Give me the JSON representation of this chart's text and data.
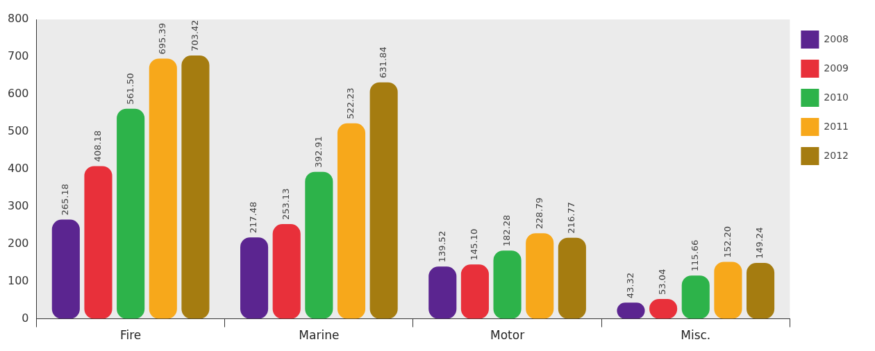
{
  "chart_data": {
    "type": "bar",
    "categories": [
      "Fire",
      "Marine",
      "Motor",
      "Misc."
    ],
    "series": [
      {
        "name": "2008",
        "color": "#5b2590",
        "values": [
          265.18,
          217.48,
          139.52,
          43.32
        ],
        "value_labels": [
          "265.18",
          "217.48",
          "139.52",
          "43.32"
        ]
      },
      {
        "name": "2009",
        "color": "#e8303a",
        "values": [
          408.18,
          253.13,
          145.1,
          53.04
        ],
        "value_labels": [
          "408.18",
          "253.13",
          "145.10",
          "53.04"
        ]
      },
      {
        "name": "2010",
        "color": "#2db34a",
        "values": [
          561.5,
          392.91,
          182.28,
          115.66
        ],
        "value_labels": [
          "561.50",
          "392.91",
          "182.28",
          "115.66"
        ]
      },
      {
        "name": "2011",
        "color": "#f7a81b",
        "values": [
          695.39,
          522.23,
          228.79,
          152.2
        ],
        "value_labels": [
          "695.39",
          "522.23",
          "228.79",
          "152.20"
        ]
      },
      {
        "name": "2012",
        "color": "#a57c10",
        "values": [
          703.42,
          631.84,
          216.77,
          149.24
        ],
        "value_labels": [
          "703.42",
          "631.84",
          "216.77",
          "149.24"
        ]
      }
    ],
    "ylim": [
      0,
      800
    ],
    "yticks": [
      0,
      100,
      200,
      300,
      400,
      500,
      600,
      700,
      800
    ],
    "grid": false,
    "legend": "top right"
  }
}
